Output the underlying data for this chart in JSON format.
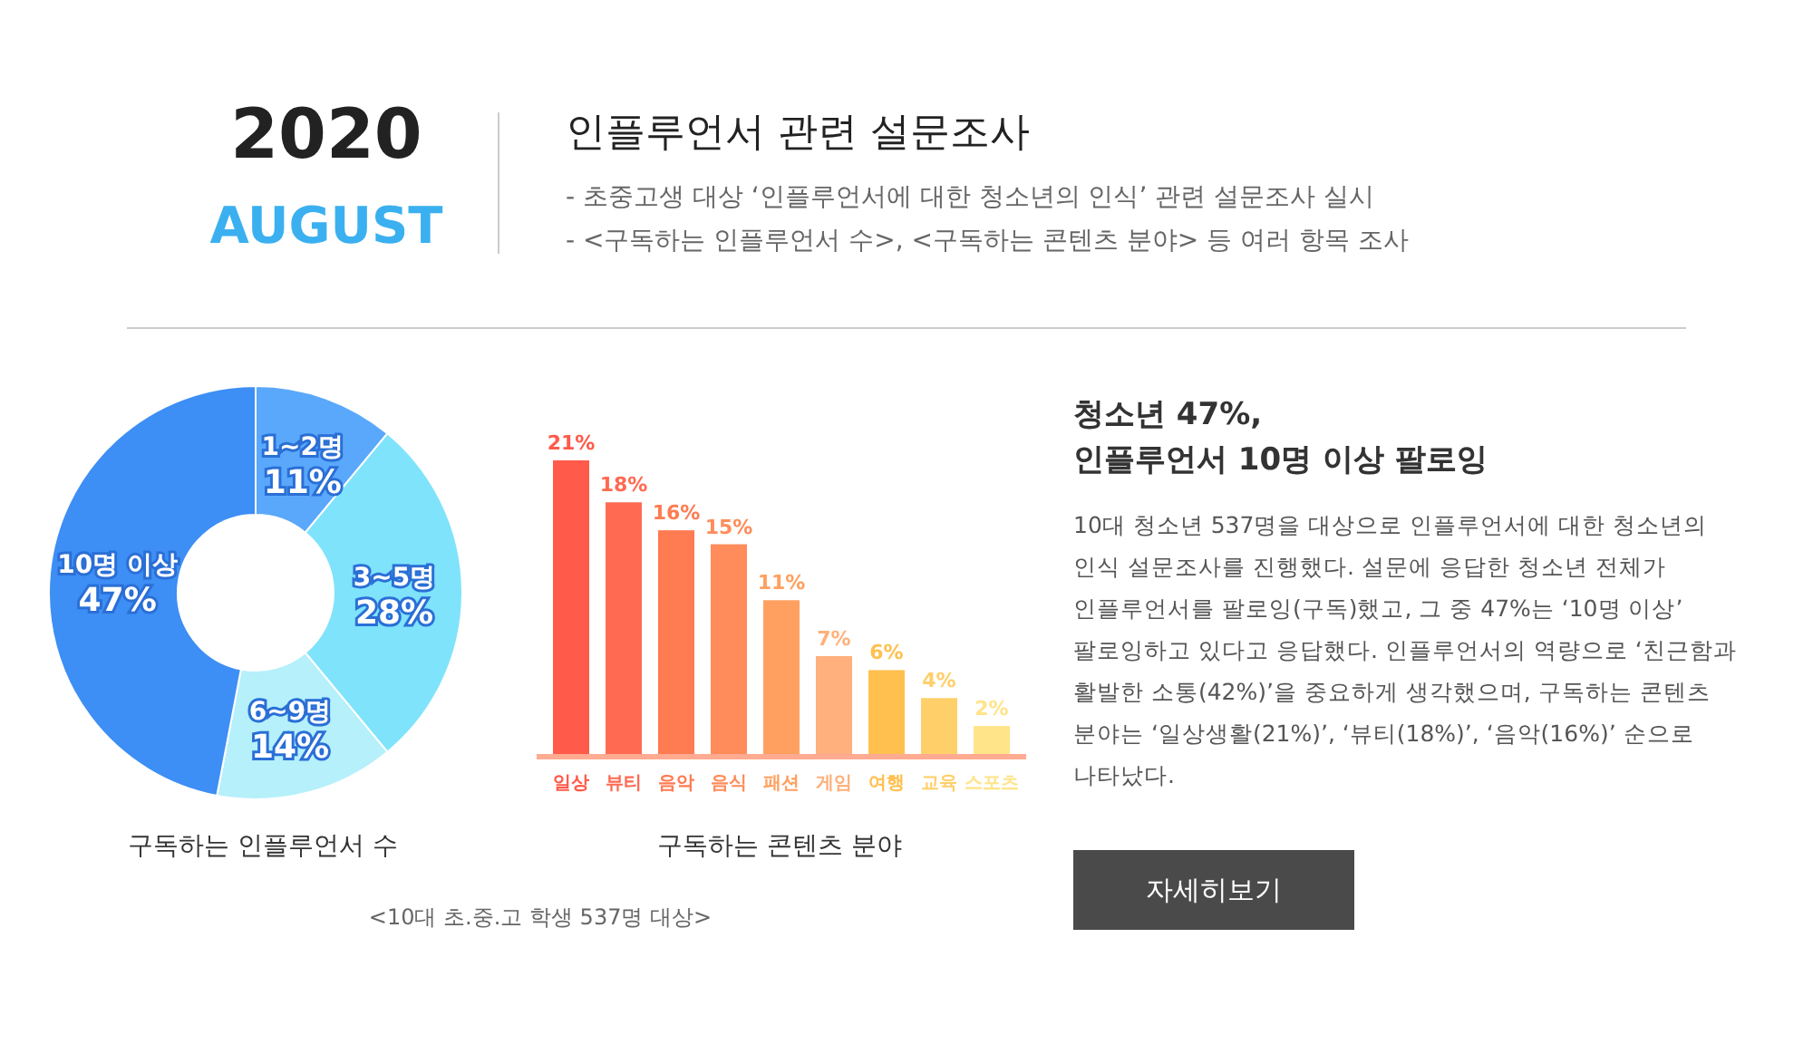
{
  "chart_data": [
    {
      "type": "other",
      "title": "인플루언서 관련 설문조사",
      "annotations": [
        "2020",
        "AUGUST",
        "-  초중고생 대상 ‘인플루언서에 대한 청소년의 인식’ 관련 설문조사 실시",
        "-  <구독하는 인플루언서 수>, <구독하는 콘텐츠 분야> 등 여러 항목 조사"
      ]
    },
    {
      "type": "donut",
      "title": "구독하는 인플루언서 수",
      "categories": [
        "1~2명",
        "3~5명",
        "6~9명",
        "10명 이상"
      ],
      "values": [
        11,
        28,
        14,
        47
      ],
      "value_labels": [
        "11%",
        "28%",
        "14%",
        "47%"
      ],
      "colors": [
        "#5aa8fb",
        "#7fe3fb",
        "#b5f0fb",
        "#3d8ef5"
      ]
    },
    {
      "type": "bar",
      "title": "구독하는 콘텐츠 분야",
      "categories": [
        "일상",
        "뷰티",
        "음악",
        "음식",
        "패션",
        "게임",
        "여행",
        "교육",
        "스포츠"
      ],
      "values": [
        21,
        18,
        16,
        15,
        11,
        7,
        6,
        4,
        2
      ],
      "value_labels": [
        "21%",
        "18%",
        "16%",
        "15%",
        "11%",
        "7%",
        "6%",
        "4%",
        "2%"
      ],
      "colors": [
        "#ff5a4a",
        "#ff6a52",
        "#ff7b52",
        "#ff8c5a",
        "#ffa060",
        "#ffb07c",
        "#ffc050",
        "#ffcf6a",
        "#ffe48a"
      ],
      "annotations": [
        "<10대 초.중.고 학생 537명 대상>"
      ]
    },
    {
      "type": "other",
      "title": "청소년 47%,\n인플루언서 10명 이상 팔로잉",
      "annotations": [
        "10대 청소년 537명을 대상으로 인플루언서에 대한 청소년의 인식 설문조사를 진행했다. 설문에 응답한 청소년 전체가 인플루언서를 팔로잉(구독)했고, 그 중 47%는 ‘10명 이상’ 팔로잉하고 있다고 응답했다. 인플루언서의 역량으로 ‘친근함과 활발한 소통(42%)’을 중요하게 생각했으며, 구독하는 콘텐츠 분야는 ‘일상생활(21%)’, ‘뷰티(18%)’, ‘음악(16%)’ 순으로 나타났다.",
        "자세히보기"
      ]
    }
  ]
}
